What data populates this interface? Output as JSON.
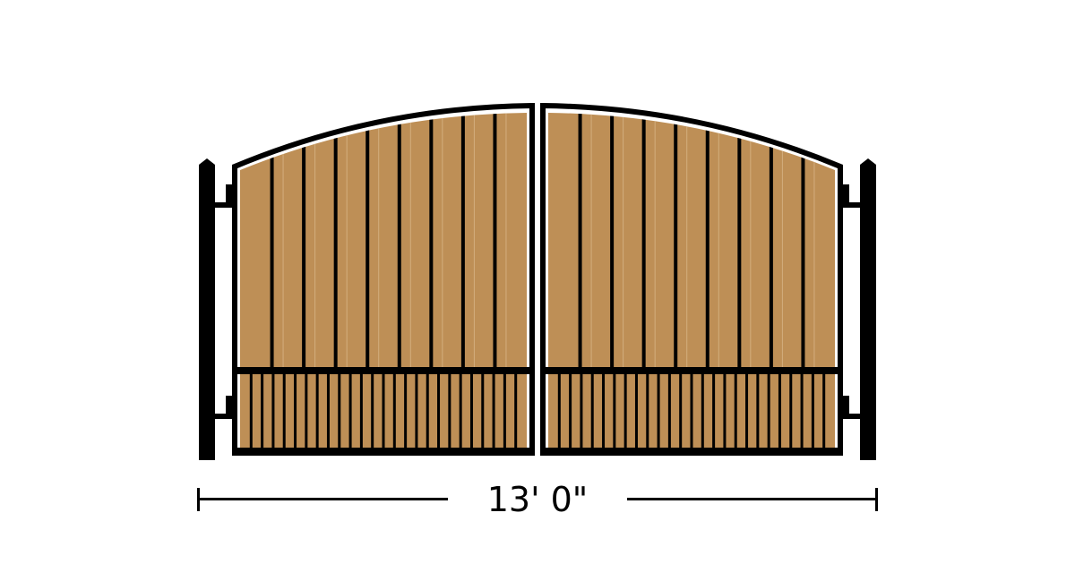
{
  "diagram": {
    "dimension_label": "13' 0\"",
    "colors": {
      "frame": "#000000",
      "wood": "#BE8F56",
      "wood_highlight": "#D3AE7E",
      "background": "#ffffff"
    }
  }
}
